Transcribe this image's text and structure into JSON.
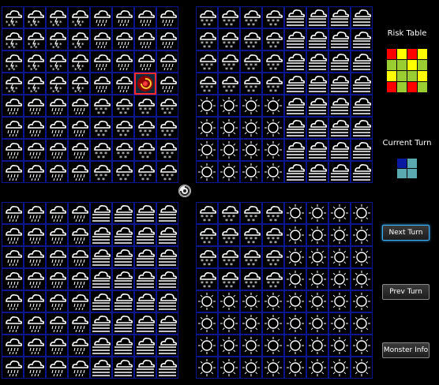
{
  "boards": [
    {
      "name": "top-left",
      "rows": [
        [
          "storm-snow",
          "storm-snow",
          "storm-snow",
          "storm-snow",
          "rain",
          "rain",
          "rain",
          "rain"
        ],
        [
          "storm-snow",
          "storm-snow",
          "storm-snow",
          "storm-snow",
          "rain",
          "rain",
          "rain",
          "rain"
        ],
        [
          "storm-snow",
          "storm-snow",
          "storm-snow",
          "storm-snow",
          "rain",
          "rain",
          "rain",
          "rain"
        ],
        [
          "storm-snow",
          "storm-snow",
          "storm-snow",
          "storm-snow",
          "rain",
          "rain",
          "monster",
          "rain"
        ],
        [
          "rain",
          "rain",
          "rain",
          "rain",
          "snow",
          "snow",
          "snow",
          "snow"
        ],
        [
          "rain",
          "rain",
          "rain",
          "rain",
          "snow",
          "snow",
          "snow",
          "snow"
        ],
        [
          "rain",
          "rain",
          "rain",
          "rain",
          "snow",
          "snow",
          "snow",
          "snow"
        ],
        [
          "rain",
          "rain",
          "rain",
          "rain",
          "snow",
          "snow",
          "snow",
          "snow"
        ]
      ]
    },
    {
      "name": "top-right",
      "rows": [
        [
          "snow",
          "snow",
          "snow",
          "snow",
          "fog",
          "fog",
          "fog",
          "fog"
        ],
        [
          "snow",
          "snow",
          "snow",
          "snow",
          "fog",
          "fog",
          "fog",
          "fog"
        ],
        [
          "snow",
          "snow",
          "snow",
          "snow",
          "fog",
          "fog",
          "fog",
          "fog"
        ],
        [
          "snow",
          "snow",
          "snow",
          "snow",
          "fog",
          "fog",
          "fog",
          "fog"
        ],
        [
          "sun",
          "sun",
          "sun",
          "sun",
          "fog",
          "fog",
          "fog",
          "fog"
        ],
        [
          "sun",
          "sun",
          "sun",
          "sun",
          "fog",
          "fog",
          "fog",
          "fog"
        ],
        [
          "sun",
          "sun",
          "sun",
          "sun",
          "fog",
          "fog",
          "fog",
          "fog"
        ],
        [
          "sun",
          "sun",
          "sun",
          "sun",
          "fog",
          "fog",
          "fog",
          "fog"
        ]
      ]
    },
    {
      "name": "bottom-left",
      "rows": [
        [
          "rain",
          "rain",
          "rain",
          "rain",
          "fog",
          "fog",
          "fog",
          "fog"
        ],
        [
          "rain",
          "rain",
          "rain",
          "rain",
          "fog",
          "fog",
          "fog",
          "fog"
        ],
        [
          "rain",
          "rain",
          "rain",
          "rain",
          "fog",
          "fog",
          "fog",
          "fog"
        ],
        [
          "rain",
          "rain",
          "rain",
          "rain",
          "fog",
          "fog",
          "fog",
          "fog"
        ],
        [
          "rain",
          "rain",
          "rain",
          "rain",
          "fog",
          "fog",
          "fog",
          "fog"
        ],
        [
          "rain",
          "rain",
          "rain",
          "rain",
          "fog",
          "fog",
          "fog",
          "fog"
        ],
        [
          "rain",
          "rain",
          "rain",
          "rain",
          "fog",
          "fog",
          "fog",
          "fog"
        ],
        [
          "rain",
          "rain",
          "rain",
          "rain",
          "fog",
          "fog",
          "fog",
          "fog"
        ]
      ]
    },
    {
      "name": "bottom-right",
      "rows": [
        [
          "snow",
          "snow",
          "snow",
          "snow",
          "sun",
          "sun",
          "sun",
          "sun"
        ],
        [
          "snow",
          "snow",
          "snow",
          "snow",
          "sun",
          "sun",
          "sun",
          "sun"
        ],
        [
          "snow",
          "snow",
          "snow",
          "snow",
          "sun",
          "sun",
          "sun",
          "sun"
        ],
        [
          "snow",
          "snow",
          "snow",
          "snow",
          "sun",
          "sun",
          "sun",
          "sun"
        ],
        [
          "sun",
          "sun",
          "sun",
          "sun",
          "sun",
          "sun",
          "sun",
          "sun"
        ],
        [
          "sun",
          "sun",
          "sun",
          "sun",
          "sun",
          "sun",
          "sun",
          "sun"
        ],
        [
          "sun",
          "sun",
          "sun",
          "sun",
          "sun",
          "sun",
          "sun",
          "sun"
        ],
        [
          "sun",
          "sun",
          "sun",
          "sun",
          "sun",
          "sun",
          "sun",
          "sun"
        ]
      ]
    }
  ],
  "panel": {
    "risk_title": "Risk Table",
    "current_turn_title": "Current Turn",
    "risk_table": [
      [
        "#ff0000",
        "#ffff00",
        "#ff0000",
        "#ffff00"
      ],
      [
        "#9acd32",
        "#9acd32",
        "#ffff00",
        "#9acd32"
      ],
      [
        "#ffff00",
        "#9acd32",
        "#9acd32",
        "#ffff00"
      ],
      [
        "#ff0000",
        "#9acd32",
        "#ff0000",
        "#9acd32"
      ]
    ],
    "current_turn": [
      [
        "#0a1aa0",
        "#5aa8b0"
      ],
      [
        "#5aa8b0",
        "#5aa8b0"
      ]
    ],
    "buttons": {
      "next_turn": "Next Turn",
      "prev_turn": "Prev Turn",
      "monster_info": "Monster Info"
    }
  },
  "colors": {
    "grid_line": "#0c1690",
    "icon_stroke": "#ffffff",
    "highlight": "#ff2a2a"
  }
}
